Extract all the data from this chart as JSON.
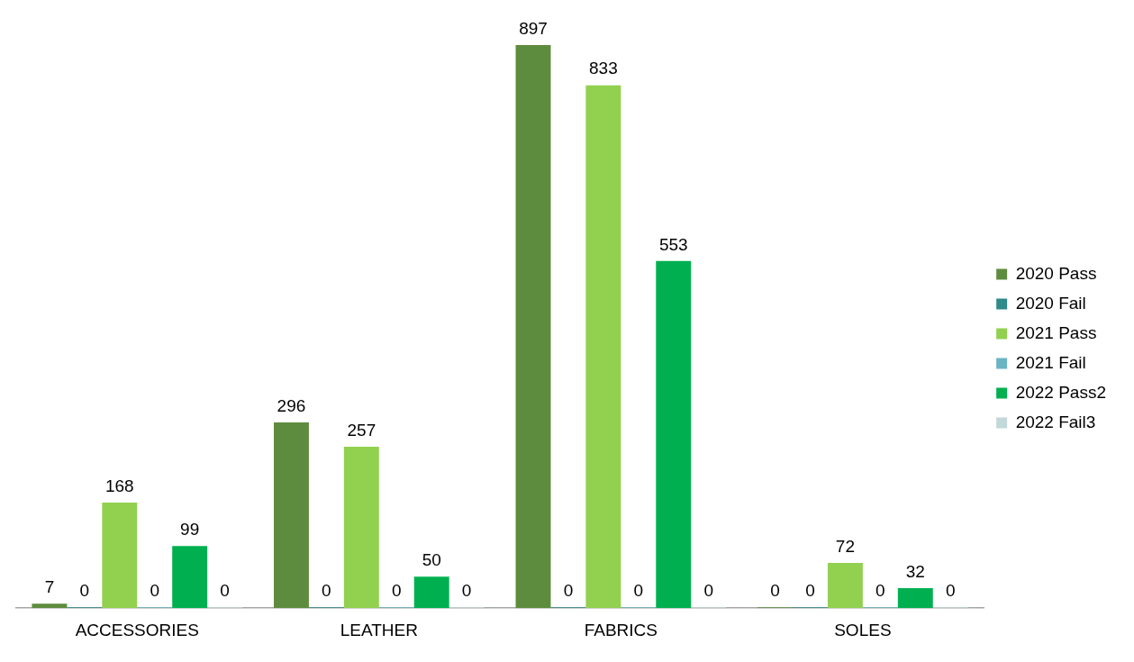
{
  "chart_data": {
    "type": "bar",
    "categories": [
      "ACCESSORIES",
      "LEATHER",
      "FABRICS",
      "SOLES"
    ],
    "series": [
      {
        "name": "2020 Pass",
        "color": "#5e8c3e",
        "values": [
          7,
          296,
          897,
          0
        ]
      },
      {
        "name": "2020 Fail",
        "color": "#31898a",
        "values": [
          0,
          0,
          0,
          0
        ]
      },
      {
        "name": "2021 Pass",
        "color": "#92d050",
        "values": [
          168,
          257,
          833,
          72
        ]
      },
      {
        "name": "2021 Fail",
        "color": "#6ab4c4",
        "values": [
          0,
          0,
          0,
          0
        ]
      },
      {
        "name": "2022 Pass2",
        "color": "#00b050",
        "values": [
          99,
          50,
          553,
          32
        ]
      },
      {
        "name": "2022 Fail3",
        "color": "#c3d8d8",
        "values": [
          0,
          0,
          0,
          0
        ]
      }
    ],
    "data_labels": true,
    "legend": "right",
    "grid": false
  }
}
